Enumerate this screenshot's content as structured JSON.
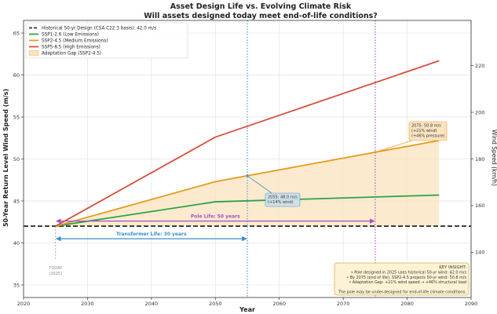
{
  "chart_data": {
    "type": "line",
    "title": "Asset Design Life vs. Evolving Climate Risk",
    "subtitle": "Will assets designed today meet end-of-life conditions?",
    "xlabel": "Year",
    "ylabel": "50-Year Return Level Wind Speed (m/s)",
    "ylabel_right": "Wind Speed (km/h)",
    "xlim": [
      2020,
      2090
    ],
    "ylim": [
      33.5,
      66.5
    ],
    "ylim_right": [
      120.6,
      239.4
    ],
    "xticks": [
      2020,
      2030,
      2040,
      2050,
      2060,
      2070,
      2080,
      2090
    ],
    "yticks": [
      35,
      40,
      45,
      50,
      55,
      60,
      65
    ],
    "yticks_right": [
      140,
      160,
      180,
      200,
      220
    ],
    "grid": true,
    "legend_position": "top-left",
    "baseline": {
      "name": "Historical 50-yr Design (CSA C22.3 basis): 42.0 m/s",
      "y": 42.0,
      "color": "#333333"
    },
    "series": [
      {
        "name": "SSP1-2.6 (Low Emissions)",
        "color": "#2ca24a",
        "x": [
          2025,
          2050,
          2085
        ],
        "y": [
          42.0,
          44.9,
          45.7
        ]
      },
      {
        "name": "SSP2-4.5 (Medium Emissions)",
        "color": "#e69a1c",
        "x": [
          2025,
          2050,
          2085
        ],
        "y": [
          42.0,
          47.3,
          52.2
        ]
      },
      {
        "name": "SSP5-8.5 (High Emissions)",
        "color": "#d9503f",
        "x": [
          2025,
          2050,
          2085
        ],
        "y": [
          42.0,
          52.6,
          61.7
        ]
      }
    ],
    "gap_band": {
      "name": "Adaptation Gap (SSP2-4.5)",
      "color": "#fbe3bd"
    },
    "vlines": [
      {
        "x": 2055,
        "color": "#5aa6d6"
      },
      {
        "x": 2075,
        "color": "#a56ac4"
      }
    ],
    "spans": [
      {
        "label": "Pole Life: 50 years",
        "x0": 2025,
        "x1": 2075,
        "y": 42.6,
        "color": "#a053c2"
      },
      {
        "label": "Transformer Life: 30 years",
        "x0": 2025,
        "x1": 2055,
        "y": 40.5,
        "color": "#3b8fc7"
      }
    ],
    "annotations": [
      {
        "lines": [
          "2055: 48.0 m/s",
          "(+14% wind)"
        ],
        "x": 2055,
        "y": 48.0,
        "color": "#3b8fc7",
        "fill": "#cfe0ea"
      },
      {
        "lines": [
          "2075: 50.8 m/s",
          "(+21% wind)",
          "(+46% pressure)"
        ],
        "x": 2075,
        "y": 50.8,
        "color": "#e69a1c",
        "fill": "#fbe3bd"
      }
    ],
    "today_marker": {
      "lines": [
        "TODAY",
        "(2025)"
      ],
      "x": 2025
    },
    "insight": {
      "title": "KEY INSIGHT:",
      "lines": [
        "• Pole designed in 2025 uses historical 50-yr wind: 42.0 m/s",
        "• By 2075 (end of life), SSP2-4.5 projects 50-yr wind: 50.8 m/s",
        "• Adaptation Gap: +21% wind speed → +46% structural load",
        "",
        "The pole may be under-designed for end-of-life climate conditions."
      ]
    }
  }
}
